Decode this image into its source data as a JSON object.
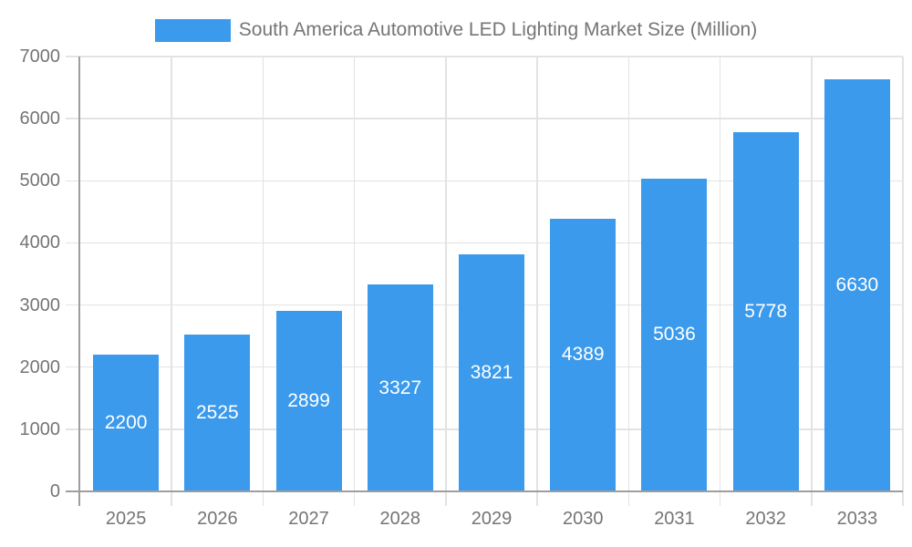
{
  "chart_data": {
    "type": "bar",
    "title": "South America Automotive LED Lighting Market Size (Million)",
    "series_name": "South America Automotive LED Lighting Market Size (Million)",
    "categories": [
      "2025",
      "2026",
      "2027",
      "2028",
      "2029",
      "2030",
      "2031",
      "2032",
      "2033"
    ],
    "values": [
      2200,
      2525,
      2899,
      3327,
      3821,
      4389,
      5036,
      5778,
      6630
    ],
    "value_labels": [
      "2200",
      "2525",
      "2899",
      "3327",
      "3821",
      "4389",
      "5036",
      "5778",
      "6630"
    ],
    "xlabel": "",
    "ylabel": "",
    "ylim": [
      0,
      7000
    ],
    "y_ticks": [
      "0",
      "1000",
      "2000",
      "3000",
      "4000",
      "5000",
      "6000",
      "7000"
    ],
    "grid": true,
    "legend_position": "top",
    "colors": {
      "bar": "#3b9aeb",
      "value_label": "#ffffff",
      "grid_line": "#e3e3e3",
      "axis_line": "#9e9e9e",
      "axis_text": "#757575",
      "legend_text": "#757575",
      "background": "#ffffff"
    }
  }
}
